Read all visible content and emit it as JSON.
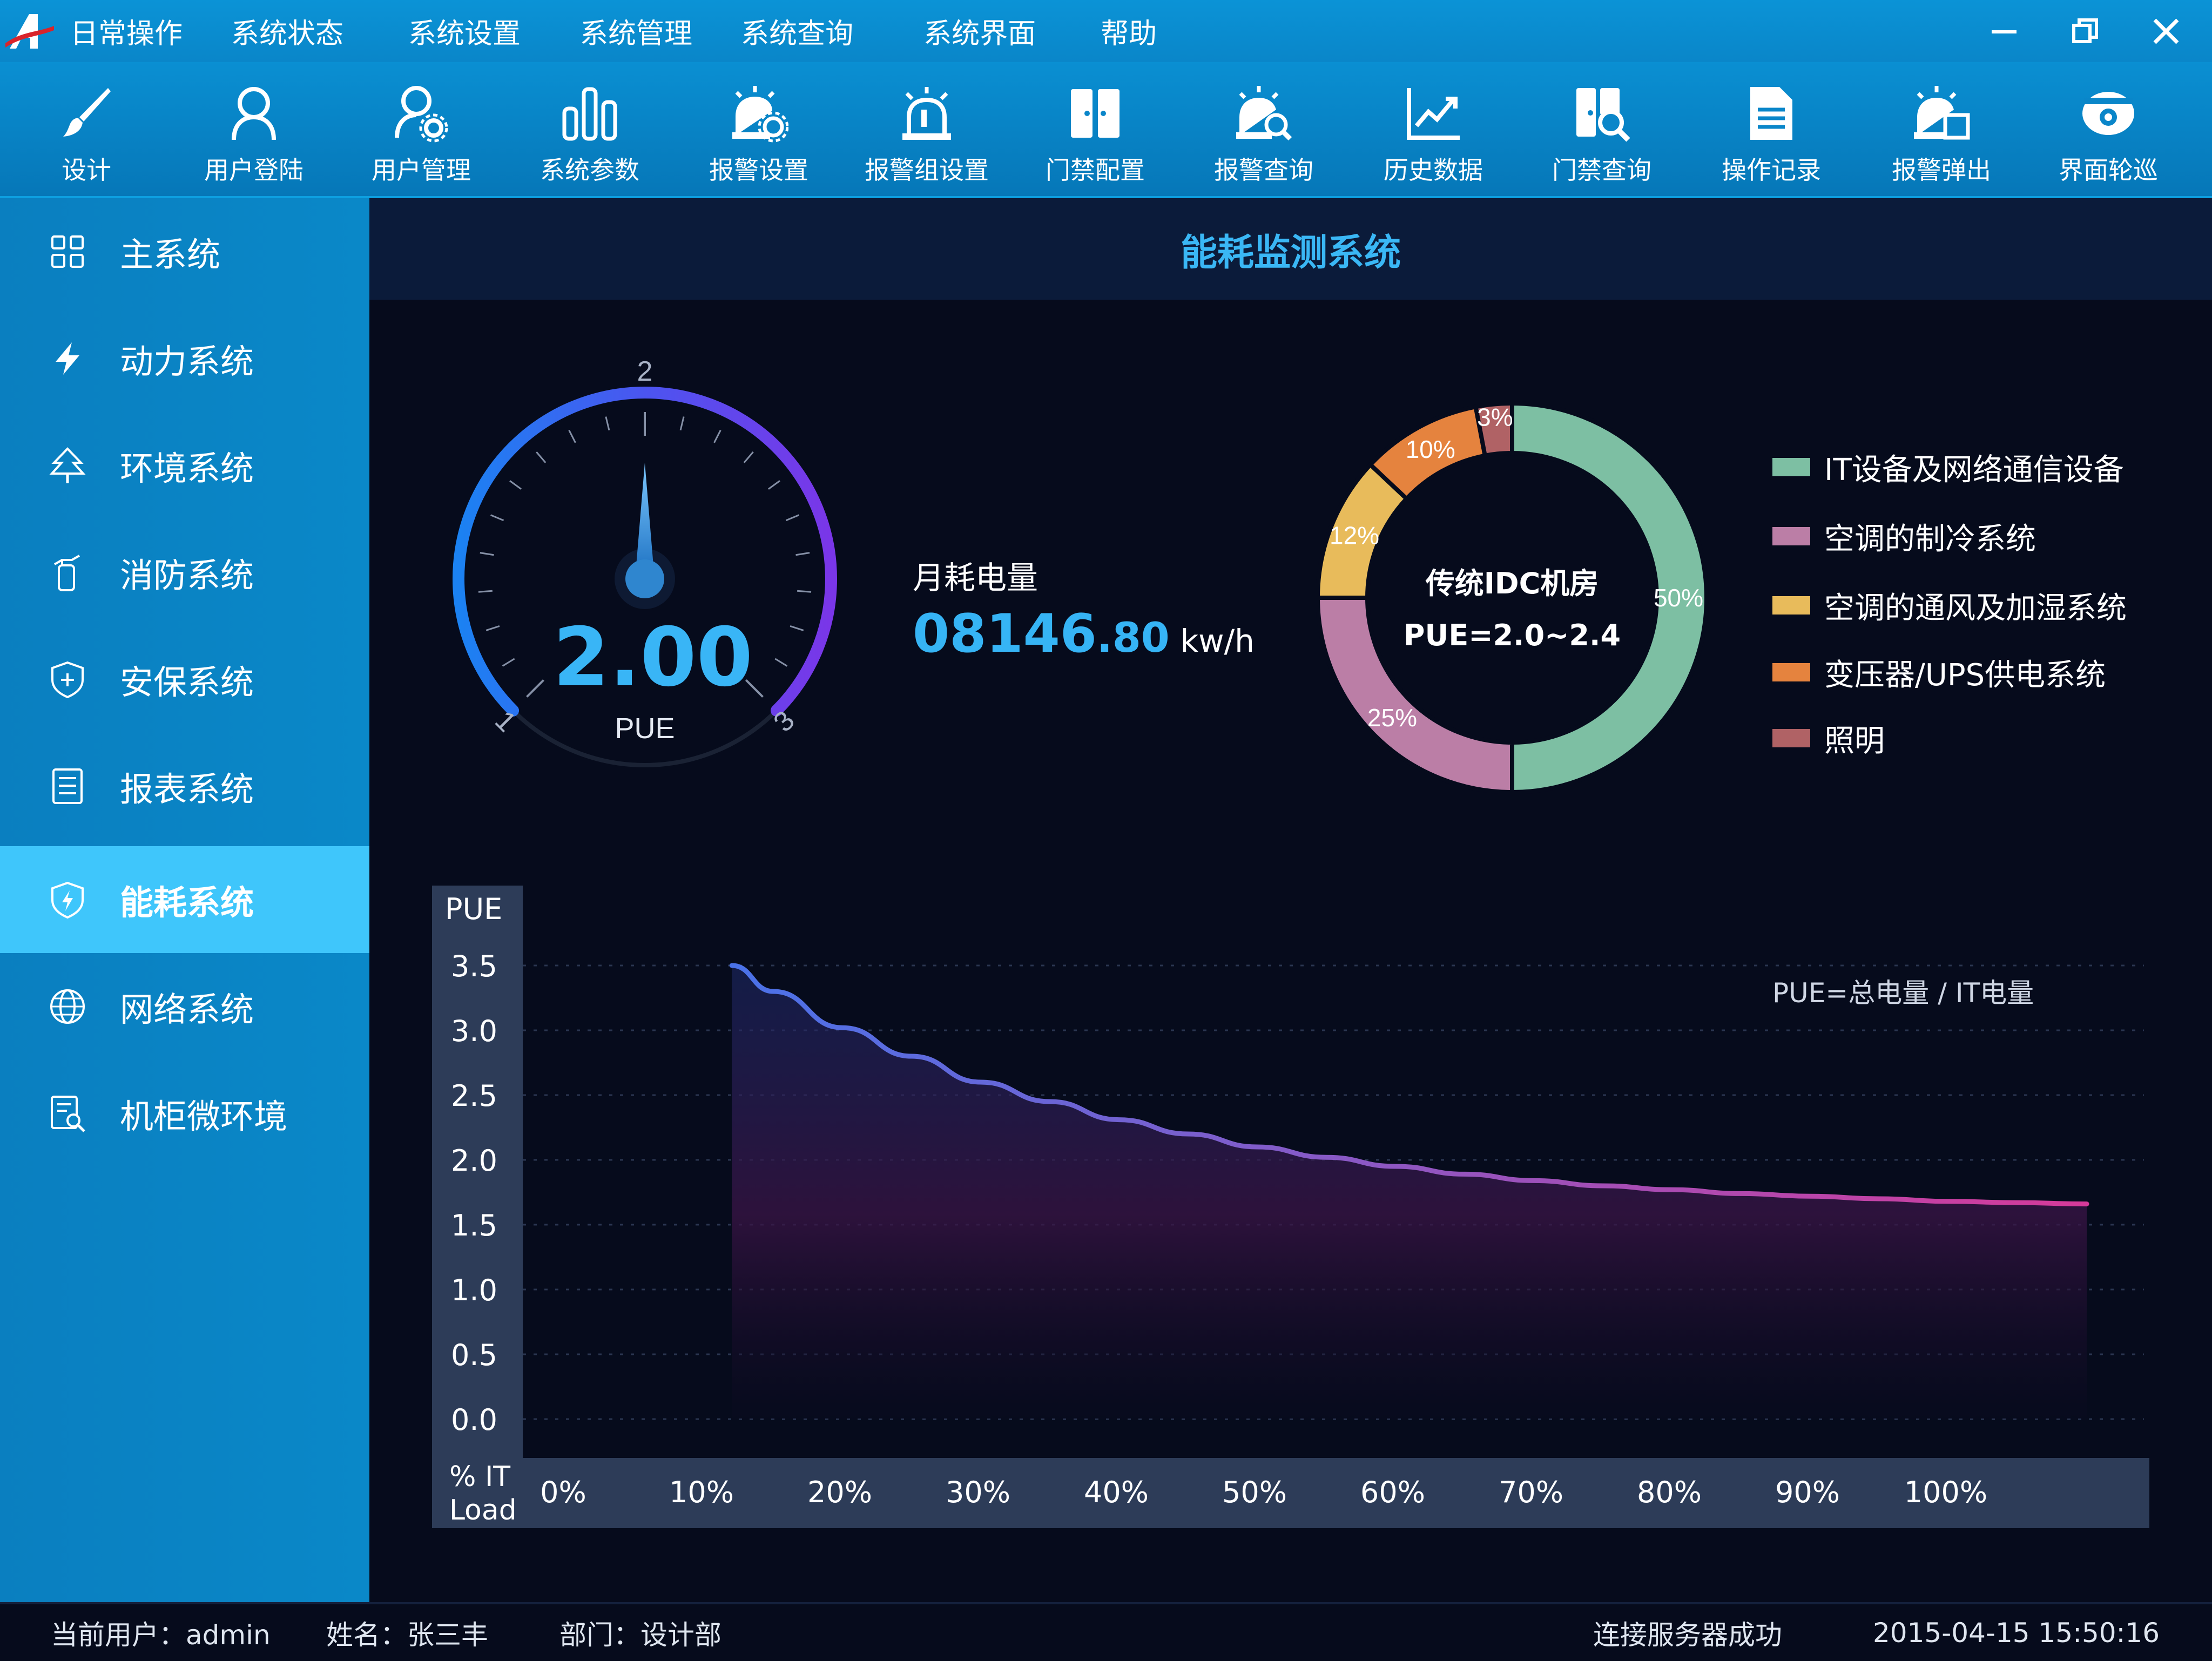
{
  "menubar": {
    "logo_text": "A",
    "items": [
      "日常操作",
      "系统状态",
      "系统设置",
      "系统管理",
      "系统查询",
      "系统界面",
      "帮助"
    ]
  },
  "toolbar": {
    "items": [
      {
        "label": "设计",
        "icon": "brush-icon"
      },
      {
        "label": "用户登陆",
        "icon": "user-icon"
      },
      {
        "label": "用户管理",
        "icon": "user-settings-icon"
      },
      {
        "label": "系统参数",
        "icon": "bar-params-icon"
      },
      {
        "label": "报警设置",
        "icon": "alarm-settings-icon"
      },
      {
        "label": "报警组设置",
        "icon": "alarm-group-icon"
      },
      {
        "label": "门禁配置",
        "icon": "door-config-icon"
      },
      {
        "label": "报警查询",
        "icon": "alarm-search-icon"
      },
      {
        "label": "历史数据",
        "icon": "history-chart-icon"
      },
      {
        "label": "门禁查询",
        "icon": "door-search-icon"
      },
      {
        "label": "操作记录",
        "icon": "document-icon"
      },
      {
        "label": "报警弹出",
        "icon": "alarm-popup-icon"
      },
      {
        "label": "界面轮巡",
        "icon": "camera-icon"
      }
    ]
  },
  "sidebar": {
    "active_index": 6,
    "items": [
      {
        "label": "主系统",
        "icon": "grid-icon"
      },
      {
        "label": "动力系统",
        "icon": "lightning-icon"
      },
      {
        "label": "环境系统",
        "icon": "tree-icon"
      },
      {
        "label": "消防系统",
        "icon": "extinguisher-icon"
      },
      {
        "label": "安保系统",
        "icon": "shield-plus-icon"
      },
      {
        "label": "报表系统",
        "icon": "report-list-icon"
      },
      {
        "label": "能耗系统",
        "icon": "energy-shield-icon"
      },
      {
        "label": "网络系统",
        "icon": "globe-icon"
      },
      {
        "label": "机柜微环境",
        "icon": "cabinet-search-icon"
      }
    ]
  },
  "main": {
    "title": "能耗监测系统",
    "gauge": {
      "value": 2.0,
      "value_text": "2.00",
      "unit": "PUE",
      "min": 1,
      "max": 3,
      "tick_labels": [
        "1",
        "2",
        "3"
      ]
    },
    "energy": {
      "label": "月耗电量",
      "value_int": "08146",
      "value_dec": ".80",
      "unit": "kw/h"
    },
    "donut": {
      "center_line1": "传统IDC机房",
      "center_line2": "PUE=2.0~2.4",
      "segments": [
        {
          "name": "IT设备及网络通信设备",
          "value": 50,
          "label": "50%",
          "color": "#7dbfa3"
        },
        {
          "name": "空调的制冷系统",
          "value": 25,
          "label": "25%",
          "color": "#bb7ea6"
        },
        {
          "name": "空调的通风及加湿系统",
          "value": 12,
          "label": "12%",
          "color": "#e8bb5b"
        },
        {
          "name": "变压器/UPS供电系统",
          "value": 10,
          "label": "10%",
          "color": "#e5833e"
        },
        {
          "name": "照明",
          "value": 3,
          "label": "3%",
          "color": "#b06265"
        }
      ]
    },
    "legend_formula": "PUE=总电量 / IT电量"
  },
  "chart_data": {
    "type": "area",
    "ylabel": "PUE",
    "xlabel": "% IT Load",
    "y_ticks": [
      "3.5",
      "3.0",
      "2.5",
      "2.0",
      "1.5",
      "1.0",
      "0.5",
      "0.0"
    ],
    "x_ticks": [
      "0%",
      "10%",
      "20%",
      "30%",
      "40%",
      "50%",
      "60%",
      "70%",
      "80%",
      "90%",
      "100%"
    ],
    "ylim": [
      0,
      3.5
    ],
    "xlim": [
      0,
      110
    ],
    "x": [
      12,
      15,
      20,
      25,
      30,
      35,
      40,
      45,
      50,
      55,
      60,
      65,
      70,
      75,
      80,
      85,
      90,
      95,
      100,
      105,
      110
    ],
    "y": [
      3.5,
      3.3,
      3.02,
      2.8,
      2.6,
      2.45,
      2.31,
      2.2,
      2.1,
      2.02,
      1.95,
      1.89,
      1.84,
      1.8,
      1.77,
      1.74,
      1.72,
      1.7,
      1.68,
      1.67,
      1.66
    ],
    "line_color_start": "#4a72e8",
    "line_color_end": "#d63a9a"
  },
  "statusbar": {
    "user": "当前用户：admin",
    "name": "姓名：张三丰",
    "dept": "部门：设计部",
    "connection": "连接服务器成功",
    "datetime": "2015-04-15  15:50:16"
  }
}
